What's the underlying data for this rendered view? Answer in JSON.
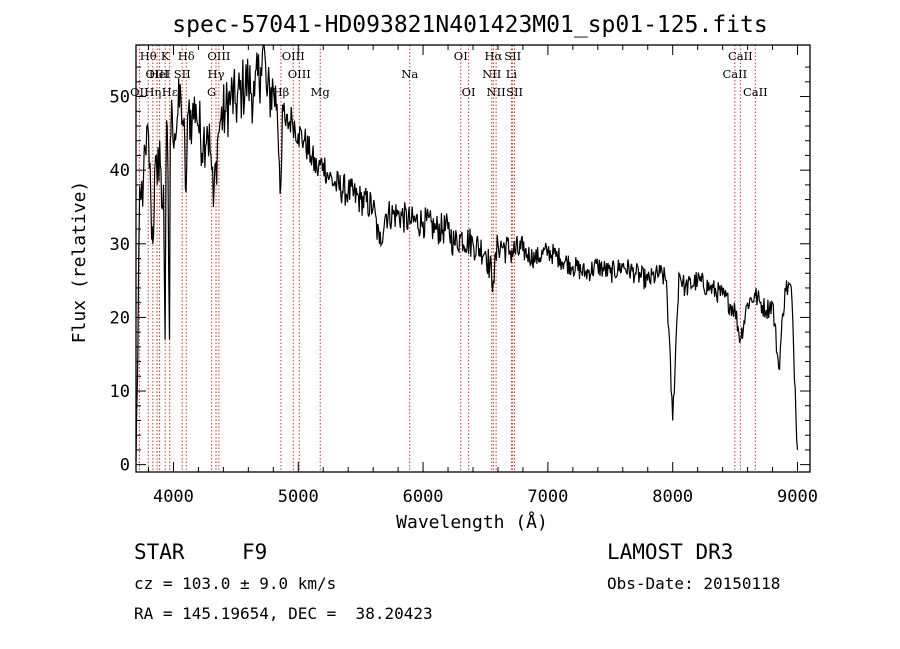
{
  "chart_data": {
    "type": "line",
    "title": "spec-57041-HD093821N401423M01_sp01-125.fits",
    "xlabel": "Wavelength (Å)",
    "ylabel": "Flux (relative)",
    "xlim": [
      3700,
      9100
    ],
    "ylim": [
      -1,
      57
    ],
    "xticks": [
      4000,
      5000,
      6000,
      7000,
      8000,
      9000
    ],
    "yticks": [
      0,
      10,
      20,
      30,
      40,
      50
    ],
    "grid": false,
    "series": [
      {
        "name": "flux",
        "x": [
          3700,
          3710,
          3725,
          3740,
          3760,
          3780,
          3800,
          3820,
          3835,
          3850,
          3870,
          3890,
          3905,
          3920,
          3933,
          3940,
          3950,
          3968,
          3975,
          3990,
          4010,
          4030,
          4060,
          4080,
          4101,
          4120,
          4150,
          4180,
          4200,
          4240,
          4270,
          4300,
          4320,
          4340,
          4360,
          4380,
          4420,
          4460,
          4500,
          4550,
          4600,
          4650,
          4700,
          4720,
          4750,
          4800,
          4830,
          4861,
          4880,
          4900,
          4950,
          5000,
          5050,
          5100,
          5150,
          5200,
          5250,
          5300,
          5400,
          5500,
          5600,
          5650,
          5700,
          5800,
          5900,
          6000,
          6100,
          6200,
          6250,
          6300,
          6400,
          6500,
          6563,
          6600,
          6700,
          6800,
          6900,
          7000,
          7100,
          7200,
          7300,
          7400,
          7500,
          7600,
          7700,
          7800,
          7900,
          7950,
          8000,
          8050,
          8100,
          8200,
          8300,
          8400,
          8500,
          8542,
          8600,
          8662,
          8700,
          8750,
          8800,
          8850,
          8900,
          8950,
          9000
        ],
        "y": [
          0.5,
          10,
          32,
          36,
          39,
          42,
          45,
          35,
          30,
          40,
          38,
          44,
          35,
          38,
          17,
          40,
          46,
          17,
          44,
          48,
          45,
          47,
          50,
          46,
          37,
          48,
          47,
          49,
          46,
          44,
          46,
          42,
          35,
          41,
          45,
          47,
          48,
          50,
          49,
          51,
          52,
          50,
          54,
          57,
          50,
          51,
          49,
          38,
          48,
          46,
          47,
          45,
          44,
          42,
          40,
          41,
          39,
          38,
          37,
          36,
          35,
          30,
          34,
          34,
          33,
          33,
          32,
          32,
          30,
          31,
          30,
          29,
          25,
          30,
          29,
          29,
          28,
          29,
          28,
          27,
          26,
          27,
          26,
          27,
          26,
          25,
          26,
          25,
          6,
          26,
          24,
          25,
          24,
          23,
          21,
          17,
          22,
          23,
          22,
          21,
          22,
          13,
          24,
          24,
          2
        ]
      }
    ],
    "line_markers": [
      {
        "label": "OII",
        "x": 3727,
        "row": 3
      },
      {
        "label": "Hθ",
        "x": 3798,
        "row": 1
      },
      {
        "label": "OIII",
        "x": 3869,
        "row": 2
      },
      {
        "label": "Hη",
        "x": 3835,
        "row": 3
      },
      {
        "label": "HeI",
        "x": 3889,
        "row": 2
      },
      {
        "label": "K",
        "x": 3934,
        "row": 1
      },
      {
        "label": "Hε",
        "x": 3970,
        "row": 3
      },
      {
        "label": "SII",
        "x": 4070,
        "row": 2
      },
      {
        "label": "Hδ",
        "x": 4102,
        "row": 1
      },
      {
        "label": "OIII",
        "x": 4364,
        "row": 1
      },
      {
        "label": "Hγ",
        "x": 4341,
        "row": 2
      },
      {
        "label": "G",
        "x": 4306,
        "row": 3
      },
      {
        "label": "Hβ",
        "x": 4861,
        "row": 3
      },
      {
        "label": "OIII",
        "x": 4960,
        "row": 1
      },
      {
        "label": "OIII",
        "x": 5008,
        "row": 2
      },
      {
        "label": "Mg",
        "x": 5176,
        "row": 3
      },
      {
        "label": "Na",
        "x": 5893,
        "row": 2
      },
      {
        "label": "OI",
        "x": 6302,
        "row": 1
      },
      {
        "label": "OI",
        "x": 6365,
        "row": 3
      },
      {
        "label": "Hα",
        "x": 6563,
        "row": 1
      },
      {
        "label": "NII",
        "x": 6550,
        "row": 2
      },
      {
        "label": "NII",
        "x": 6585,
        "row": 3
      },
      {
        "label": "SII",
        "x": 6718,
        "row": 1
      },
      {
        "label": "Li",
        "x": 6708,
        "row": 2
      },
      {
        "label": "SII",
        "x": 6733,
        "row": 3
      },
      {
        "label": "CaII",
        "x": 8498,
        "row": 2
      },
      {
        "label": "CaII",
        "x": 8542,
        "row": 1
      },
      {
        "label": "CaII",
        "x": 8662,
        "row": 3
      }
    ]
  },
  "info": {
    "object_class": "STAR",
    "subclass": "F9",
    "survey": "LAMOST DR3",
    "cz": "cz = 103.0 ± 9.0 km/s",
    "obs_date": "Obs-Date: 20150118",
    "coords": "RA = 145.19654, DEC =  38.20423"
  }
}
